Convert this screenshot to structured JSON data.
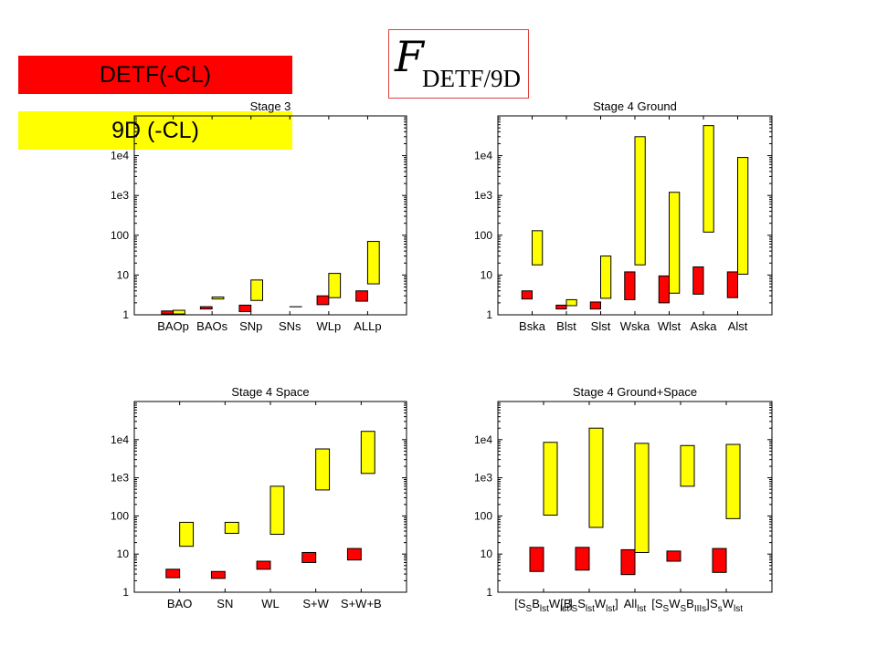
{
  "legend": {
    "red_label": "DETF(-CL)",
    "yellow_label": "9D (-CL)",
    "red_color": "#ff0000",
    "yellow_color": "#ffff00"
  },
  "logo": {
    "script": "F",
    "subscript": "DETF/9D"
  },
  "chart_data": [
    {
      "type": "bar",
      "title": "Stage 3",
      "yscale": "log",
      "ylim": [
        1,
        100000
      ],
      "yticks": [
        "1",
        "10",
        "100",
        "1e3",
        "1e4"
      ],
      "categories": [
        "BAOp",
        "BAOs",
        "SNp",
        "SNs",
        "WLp",
        "ALLp"
      ],
      "series": [
        {
          "name": "DETF(-CL)",
          "color": "#ff0000",
          "ranges": [
            [
              1.05,
              1.25
            ],
            [
              1.4,
              1.6
            ],
            [
              1.2,
              1.75
            ],
            null,
            [
              1.8,
              3.0
            ],
            [
              2.2,
              4.0
            ]
          ]
        },
        {
          "name": "9D (-CL)",
          "color": "#ffff00",
          "ranges": [
            [
              1.05,
              1.3
            ],
            [
              2.5,
              2.8
            ],
            [
              2.3,
              7.5
            ],
            [
              1.6,
              1.6
            ],
            [
              2.7,
              11.0
            ],
            [
              6.0,
              70.0
            ]
          ]
        }
      ]
    },
    {
      "type": "bar",
      "title": "Stage 4 Ground",
      "yscale": "log",
      "ylim": [
        1,
        100000
      ],
      "yticks": [
        "1",
        "10",
        "100",
        "1e3",
        "1e4"
      ],
      "categories": [
        "Bska",
        "Blst",
        "Slst",
        "Wska",
        "Wlst",
        "Aska",
        "Alst"
      ],
      "series": [
        {
          "name": "DETF(-CL)",
          "color": "#ff0000",
          "ranges": [
            [
              2.5,
              4.0
            ],
            [
              1.4,
              1.75
            ],
            [
              1.4,
              2.1
            ],
            [
              2.4,
              12.0
            ],
            [
              2.0,
              9.5
            ],
            [
              3.3,
              16.0
            ],
            [
              2.7,
              12.0
            ]
          ]
        },
        {
          "name": "9D (-CL)",
          "color": "#ffff00",
          "ranges": [
            [
              18.0,
              130.0
            ],
            [
              1.7,
              2.4
            ],
            [
              2.6,
              30.0
            ],
            [
              18.0,
              30000.0
            ],
            [
              3.5,
              1200.0
            ],
            [
              120.0,
              57000.0
            ],
            [
              10.5,
              9000.0
            ]
          ]
        }
      ]
    },
    {
      "type": "bar",
      "title": "Stage 4 Space",
      "yscale": "log",
      "ylim": [
        1,
        100000
      ],
      "yticks": [
        "1",
        "10",
        "100",
        "1e3",
        "1e4"
      ],
      "categories": [
        "BAO",
        "SN",
        "WL",
        "S+W",
        "S+W+B"
      ],
      "series": [
        {
          "name": "DETF(-CL)",
          "color": "#ff0000",
          "ranges": [
            [
              2.4,
              4.0
            ],
            [
              2.3,
              3.5
            ],
            [
              4.0,
              6.5
            ],
            [
              6.0,
              11.0
            ],
            [
              7.0,
              14.0
            ]
          ]
        },
        {
          "name": "9D (-CL)",
          "color": "#ffff00",
          "ranges": [
            [
              16.0,
              68.0
            ],
            [
              35.0,
              68.0
            ],
            [
              33.0,
              600.0
            ],
            [
              480.0,
              5700.0
            ],
            [
              1300.0,
              16500.0
            ]
          ]
        }
      ]
    },
    {
      "type": "bar",
      "title": "Stage 4 Ground+Space",
      "yscale": "log",
      "ylim": [
        1,
        100000
      ],
      "yticks": [
        "1",
        "10",
        "100",
        "1e3",
        "1e4"
      ],
      "categories": [
        [
          [
            "[S",
            ""
          ],
          [
            "S",
            "sub"
          ],
          [
            "B",
            ""
          ],
          [
            "lst",
            "sub"
          ],
          [
            "W",
            ""
          ],
          [
            "lst",
            "sub"
          ],
          [
            "]",
            ""
          ]
        ],
        [
          [
            "[B",
            ""
          ],
          [
            "S",
            "sub"
          ],
          [
            "S",
            ""
          ],
          [
            "lst",
            "sub"
          ],
          [
            "W",
            ""
          ],
          [
            "lst",
            "sub"
          ],
          [
            "]",
            ""
          ]
        ],
        [
          [
            "All",
            ""
          ],
          [
            "lst",
            "sub"
          ]
        ],
        [
          [
            "[S",
            ""
          ],
          [
            "S",
            "sub"
          ],
          [
            "W",
            ""
          ],
          [
            "S",
            "sub"
          ],
          [
            "B",
            ""
          ],
          [
            "IIIs",
            "sub"
          ],
          [
            "]",
            ""
          ]
        ],
        [
          [
            "S",
            ""
          ],
          [
            "s",
            "sub"
          ],
          [
            "W",
            ""
          ],
          [
            "lst",
            "sub"
          ]
        ]
      ],
      "series": [
        {
          "name": "DETF(-CL)",
          "color": "#ff0000",
          "ranges": [
            [
              3.5,
              15.0
            ],
            [
              3.8,
              15.0
            ],
            [
              2.9,
              13.0
            ],
            [
              6.5,
              12.0
            ],
            [
              3.3,
              14.0
            ]
          ]
        },
        {
          "name": "9D (-CL)",
          "color": "#ffff00",
          "ranges": [
            [
              105.0,
              8500.0
            ],
            [
              50.0,
              20000.0
            ],
            [
              11.0,
              8000.0
            ],
            [
              600.0,
              7000.0
            ],
            [
              85.0,
              7500.0
            ]
          ]
        }
      ]
    }
  ]
}
